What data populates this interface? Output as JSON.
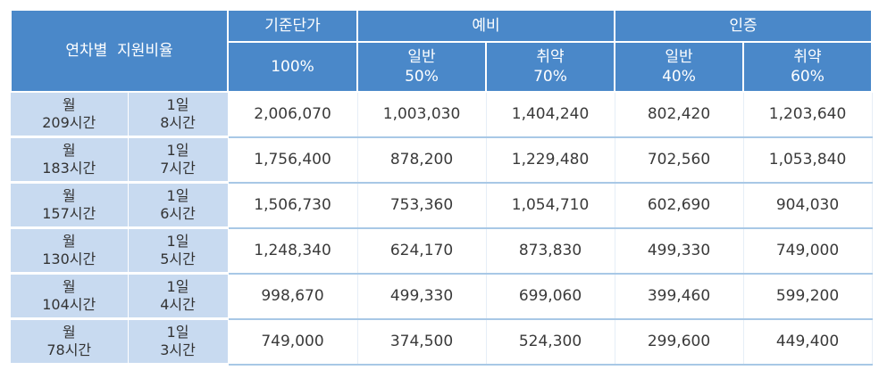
{
  "header": {
    "row_label": "연차별  지원비율",
    "groups": {
      "base": "기준단가",
      "reserve": "예비",
      "certified": "인증"
    },
    "subs": {
      "base": "100%",
      "reserve_general": [
        "일반",
        "50%"
      ],
      "reserve_vulnerable": [
        "취약",
        "70%"
      ],
      "cert_general": [
        "일반",
        "40%"
      ],
      "cert_vulnerable": [
        "취약",
        "60%"
      ]
    }
  },
  "rows": [
    {
      "monthly": [
        "월",
        "209시간"
      ],
      "daily": [
        "1일",
        "8시간"
      ],
      "values": [
        "2,006,070",
        "1,003,030",
        "1,404,240",
        "802,420",
        "1,203,640"
      ]
    },
    {
      "monthly": [
        "월",
        "183시간"
      ],
      "daily": [
        "1일",
        "7시간"
      ],
      "values": [
        "1,756,400",
        "878,200",
        "1,229,480",
        "702,560",
        "1,053,840"
      ]
    },
    {
      "monthly": [
        "월",
        "157시간"
      ],
      "daily": [
        "1일",
        "6시간"
      ],
      "values": [
        "1,506,730",
        "753,360",
        "1,054,710",
        "602,690",
        "904,030"
      ]
    },
    {
      "monthly": [
        "월",
        "130시간"
      ],
      "daily": [
        "1일",
        "5시간"
      ],
      "values": [
        "1,248,340",
        "624,170",
        "873,830",
        "499,330",
        "749,000"
      ]
    },
    {
      "monthly": [
        "월",
        "104시간"
      ],
      "daily": [
        "1일",
        "4시간"
      ],
      "values": [
        "998,670",
        "499,330",
        "699,060",
        "399,460",
        "599,200"
      ]
    },
    {
      "monthly": [
        "월",
        "78시간"
      ],
      "daily": [
        "1일",
        "3시간"
      ],
      "values": [
        "749,000",
        "374,500",
        "524,300",
        "299,600",
        "449,400"
      ]
    }
  ],
  "colors": {
    "header_bg": "#4a88c9",
    "label_bg": "#c8daf0",
    "row_divider": "#a8c8e6"
  }
}
